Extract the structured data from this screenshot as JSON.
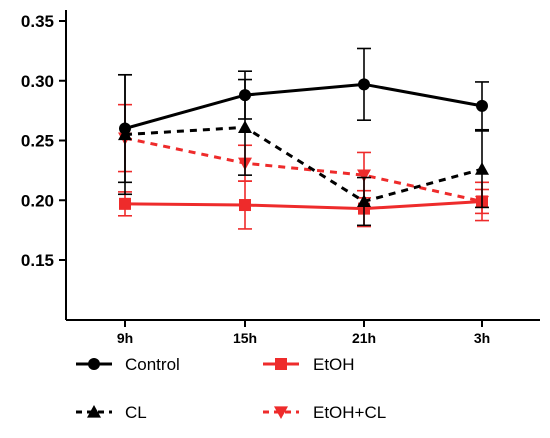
{
  "chart_data": {
    "type": "line",
    "categories": [
      "9h",
      "15h",
      "21h",
      "3h"
    ],
    "ylim": [
      0.1,
      0.35
    ],
    "yticks": [
      "0.35",
      "0.30",
      "0.25",
      "0.20",
      "0.15"
    ],
    "ytick_values": [
      0.35,
      0.3,
      0.25,
      0.2,
      0.15
    ],
    "series": [
      {
        "name": "Control",
        "values": [
          0.26,
          0.288,
          0.297,
          0.279
        ],
        "error": [
          0.045,
          0.02,
          0.03,
          0.02
        ],
        "color": "#000000",
        "dashed": false,
        "marker": "circle"
      },
      {
        "name": "CL",
        "values": [
          0.255,
          0.261,
          0.199,
          0.226
        ],
        "error": [
          0.05,
          0.04,
          0.02,
          0.032
        ],
        "color": "#000000",
        "dashed": true,
        "marker": "triangle-up"
      },
      {
        "name": "EtOH",
        "values": [
          0.197,
          0.196,
          0.193,
          0.199
        ],
        "error": [
          0.01,
          0.02,
          0.015,
          0.01
        ],
        "color": "#ee2b2b",
        "dashed": false,
        "marker": "square"
      },
      {
        "name": "EtOH+CL",
        "values": [
          0.252,
          0.231,
          0.221,
          0.199
        ],
        "error": [
          0.028,
          0.015,
          0.019,
          0.016
        ],
        "color": "#ee2b2b",
        "dashed": true,
        "marker": "triangle-down"
      }
    ],
    "legend_position": "bottom",
    "grid": false
  }
}
